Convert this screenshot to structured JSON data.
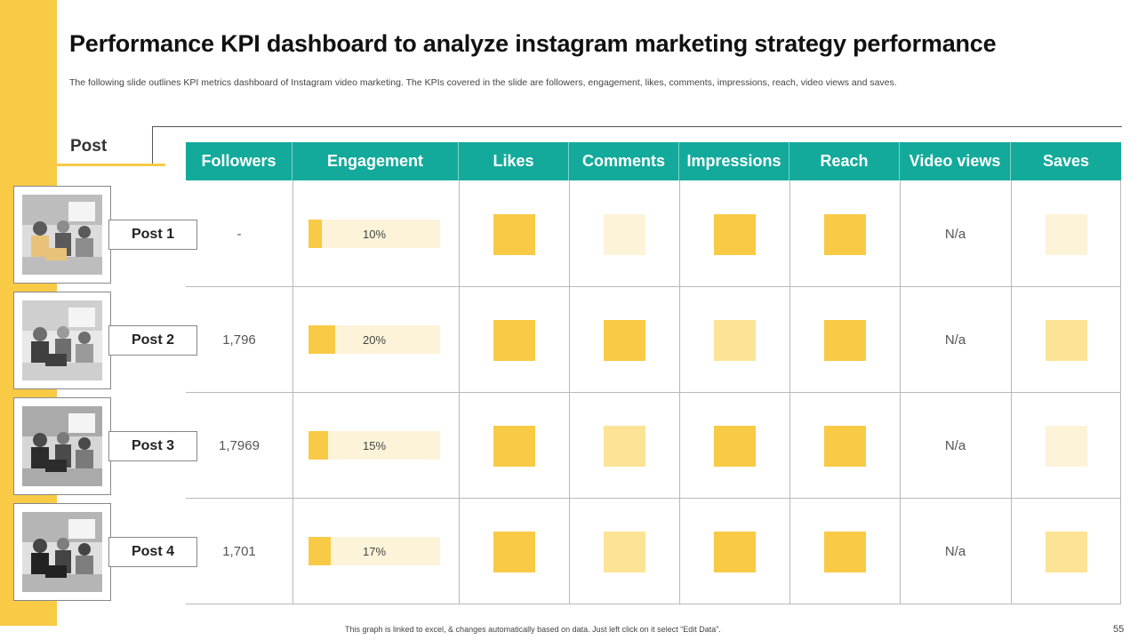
{
  "slide": {
    "title": "Performance KPI dashboard to analyze instagram marketing strategy performance",
    "subtitle": "The following slide outlines KPI metrics dashboard of Instagram video marketing. The KPIs covered in the slide are followers, engagement, likes, comments, impressions, reach, video views and saves.",
    "section_label": "Post",
    "footer_note": "This graph is linked to excel, & changes automatically based on data. Just left click on it select “Edit Data”.",
    "page_number": "55"
  },
  "colors": {
    "accent": "#f8ca46",
    "header": "#13aa9b",
    "level_high": "#f8ca46",
    "level_mid": "#fce396",
    "level_low": "#fdf3d9"
  },
  "columns": [
    "Followers",
    "Engagement",
    "Likes",
    "Comments",
    "Impressions",
    "Reach",
    "Video views",
    "Saves"
  ],
  "posts": [
    {
      "label": "Post 1",
      "image": "office-meeting-photo",
      "followers": "-",
      "engagement_pct": 10,
      "engagement_label": "10%",
      "likes": "high",
      "comments": "low",
      "impressions": "high",
      "reach": "high",
      "video_views": "N/a",
      "saves": "low"
    },
    {
      "label": "Post 2",
      "image": "document-review-photo",
      "followers": "1,796",
      "engagement_pct": 20,
      "engagement_label": "20%",
      "likes": "high",
      "comments": "high",
      "impressions": "mid",
      "reach": "high",
      "video_views": "N/a",
      "saves": "mid"
    },
    {
      "label": "Post 3",
      "image": "colleagues-laptop-photo",
      "followers": "1,7969",
      "engagement_pct": 15,
      "engagement_label": "15%",
      "likes": "high",
      "comments": "mid",
      "impressions": "high",
      "reach": "high",
      "video_views": "N/a",
      "saves": "low"
    },
    {
      "label": "Post 4",
      "image": "team-laptop-photo",
      "followers": "1,701",
      "engagement_pct": 17,
      "engagement_label": "17%",
      "likes": "high",
      "comments": "mid",
      "impressions": "high",
      "reach": "high",
      "video_views": "N/a",
      "saves": "mid"
    }
  ]
}
